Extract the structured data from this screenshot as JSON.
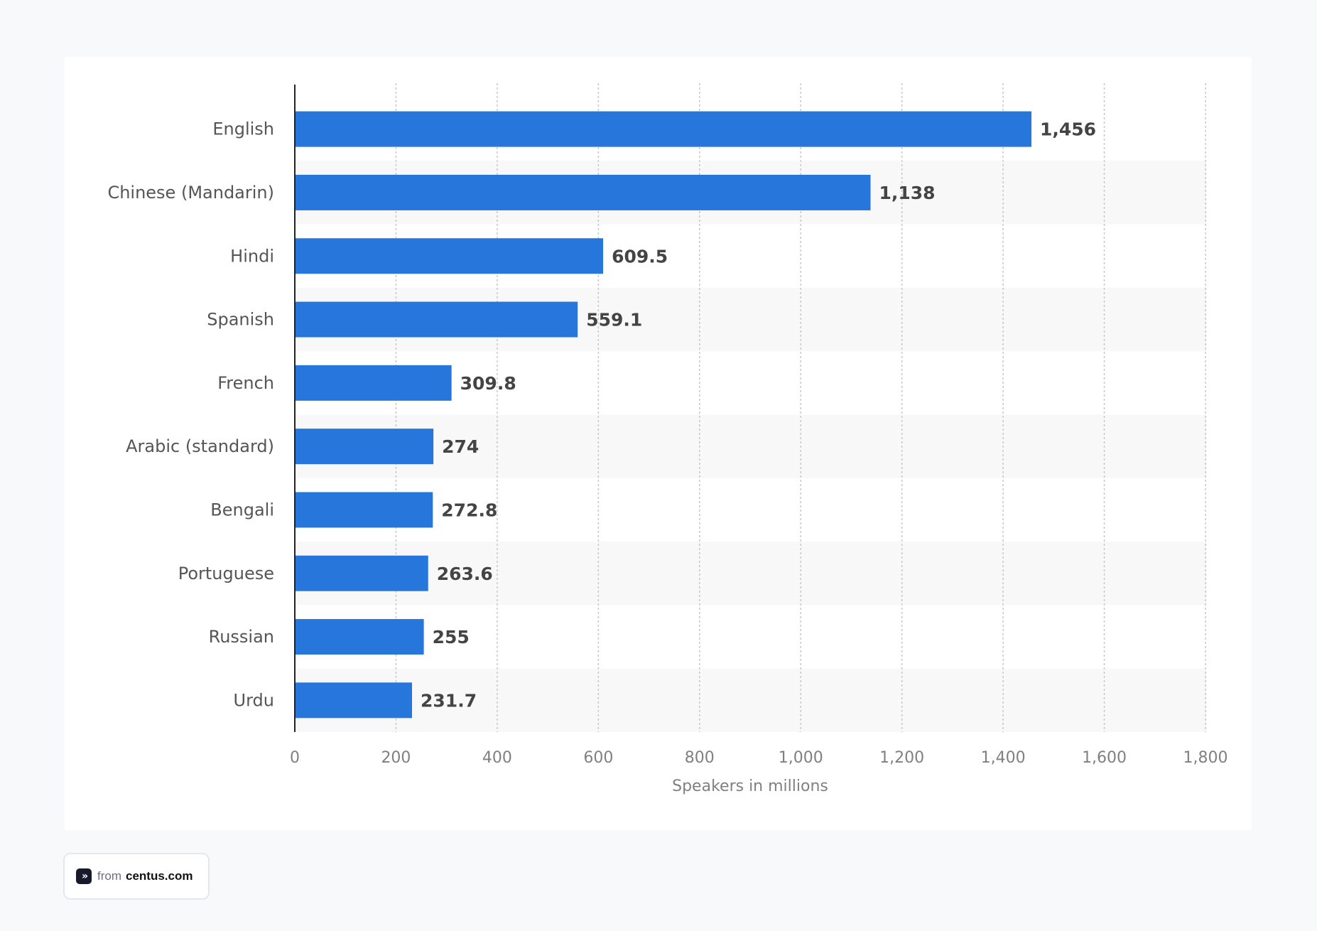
{
  "chart_data": {
    "type": "bar",
    "orientation": "horizontal",
    "categories": [
      "English",
      "Chinese (Mandarin)",
      "Hindi",
      "Spanish",
      "French",
      "Arabic (standard)",
      "Bengali",
      "Portuguese",
      "Russian",
      "Urdu"
    ],
    "values": [
      1456,
      1138,
      609.5,
      559.1,
      309.8,
      274,
      272.8,
      263.6,
      255,
      231.7
    ],
    "value_labels": [
      "1,456",
      "1,138",
      "609.5",
      "559.1",
      "309.8",
      "274",
      "272.8",
      "263.6",
      "255",
      "231.7"
    ],
    "xlabel": "Speakers in millions",
    "xlim": [
      0,
      1800
    ],
    "xticks": [
      0,
      200,
      400,
      600,
      800,
      1000,
      1200,
      1400,
      1600,
      1800
    ],
    "xtick_labels": [
      "0",
      "200",
      "400",
      "600",
      "800",
      "1,000",
      "1,200",
      "1,400",
      "1,600",
      "1,800"
    ],
    "grid": true,
    "bar_color": "#2776dc"
  },
  "badge": {
    "icon": "double-chevron-right-icon",
    "from": "from",
    "site": "centus.com"
  }
}
